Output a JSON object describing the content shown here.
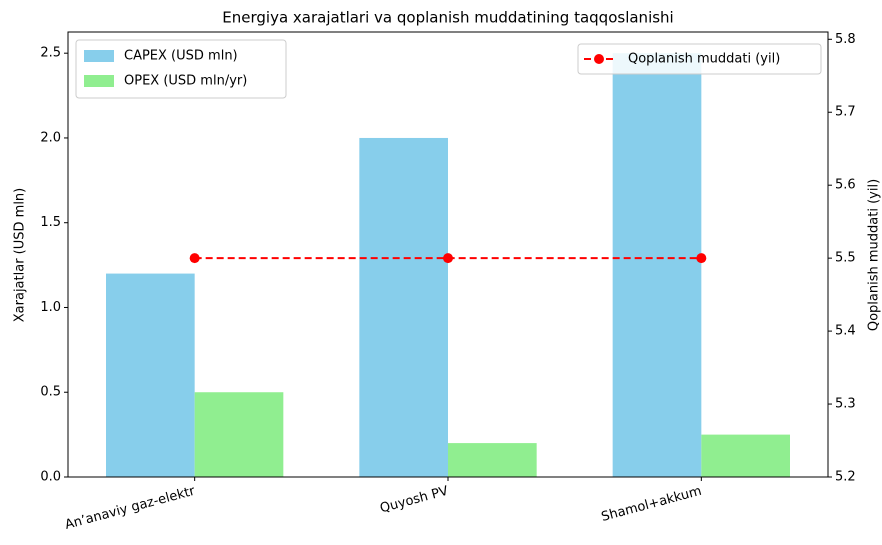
{
  "chart_data": {
    "type": "bar_line",
    "title": "Energiya xarajatlari va qoplanish muddatining taqqoslanishi",
    "ylabel": "Xarajatlar (USD mln)",
    "y2label": "Qoplanish muddati (yil)",
    "categories": [
      "An’anaviy gaz-elektr",
      "Quyosh PV",
      "Shamol+akkum"
    ],
    "series": [
      {
        "name": "CAPEX (USD mln)",
        "color": "#87ceeb",
        "values": [
          1.2,
          2.0,
          2.5
        ]
      },
      {
        "name": "OPEX (USD mln/yr)",
        "color": "#90ee90",
        "values": [
          0.5,
          0.2,
          0.25
        ]
      },
      {
        "name": "Qoplanish muddati (yil)",
        "color": "#ff0000",
        "axis": "y2",
        "values": [
          5.5,
          5.5,
          5.5
        ]
      }
    ],
    "ylim": [
      0,
      2.625
    ],
    "yticks": [
      {
        "value": 0,
        "label": "0.0"
      },
      0.5,
      {
        "value": 1,
        "label": "1.0"
      },
      1.5,
      {
        "value": 2,
        "label": "2.0"
      },
      2.5
    ],
    "y2lim": [
      5.2,
      5.81
    ],
    "y2ticks": [
      5.2,
      5.3,
      5.4,
      5.5,
      5.6,
      5.7,
      5.8
    ]
  }
}
